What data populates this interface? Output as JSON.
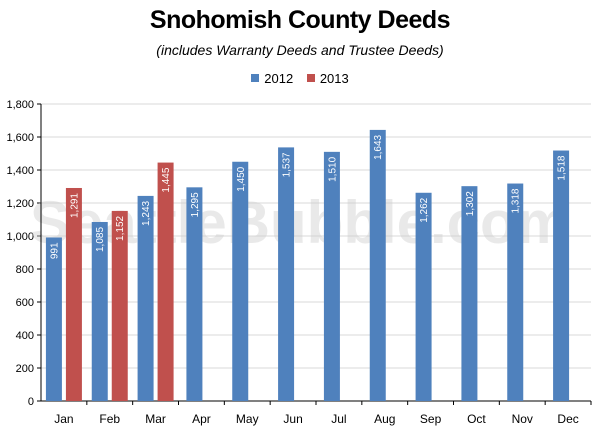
{
  "colors": {
    "s2012": "#4f81bd",
    "s2013": "#c0504d",
    "grid": "#d9d9d9",
    "axis": "#000000"
  },
  "watermark": "SeattleBubble.com",
  "chart_data": {
    "type": "bar",
    "title": "Snohomish County Deeds",
    "subtitle": "(includes Warranty Deeds and Trustee Deeds)",
    "categories": [
      "Jan",
      "Feb",
      "Mar",
      "Apr",
      "May",
      "Jun",
      "Jul",
      "Aug",
      "Sep",
      "Oct",
      "Nov",
      "Dec"
    ],
    "series": [
      {
        "name": "2012",
        "values": [
          991,
          1085,
          1243,
          1295,
          1450,
          1537,
          1510,
          1643,
          1262,
          1302,
          1318,
          1518
        ],
        "labels": [
          "991",
          "1,085",
          "1,243",
          "1,295",
          "1,450",
          "1,537",
          "1,510",
          "1,643",
          "1,262",
          "1,302",
          "1,318",
          "1,518"
        ]
      },
      {
        "name": "2013",
        "values": [
          1291,
          1152,
          1445,
          null,
          null,
          null,
          null,
          null,
          null,
          null,
          null,
          null
        ],
        "labels": [
          "1,291",
          "1,152",
          "1,445",
          null,
          null,
          null,
          null,
          null,
          null,
          null,
          null,
          null
        ]
      }
    ],
    "yticks": [
      "0",
      "200",
      "400",
      "600",
      "800",
      "1,000",
      "1,200",
      "1,400",
      "1,600",
      "1,800"
    ],
    "ylim": [
      0,
      1800
    ],
    "grid": true,
    "legend_position": "top-center"
  }
}
